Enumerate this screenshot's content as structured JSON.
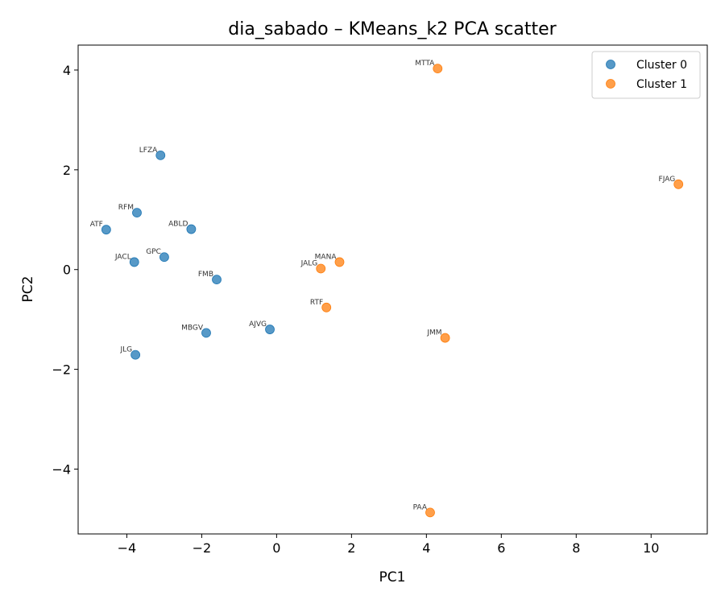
{
  "chart_data": {
    "type": "scatter",
    "title": "dia_sabado – KMeans_k2 PCA scatter",
    "xlabel": "PC1",
    "ylabel": "PC2",
    "xlim": [
      -5.3,
      11.5
    ],
    "ylim": [
      -5.3,
      4.5
    ],
    "xticks": [
      -4,
      -2,
      0,
      2,
      4,
      6,
      8,
      10
    ],
    "yticks": [
      -4,
      -2,
      0,
      2,
      4
    ],
    "grid": false,
    "legend": {
      "position": "top-right"
    },
    "series": [
      {
        "name": "Cluster 0",
        "color": "#1f77b4",
        "points": [
          {
            "label": "LFZA",
            "x": -3.1,
            "y": 2.29
          },
          {
            "label": "RFM",
            "x": -3.73,
            "y": 1.14
          },
          {
            "label": "ATF",
            "x": -4.55,
            "y": 0.8
          },
          {
            "label": "ABLD",
            "x": -2.28,
            "y": 0.81
          },
          {
            "label": "JACL",
            "x": -3.8,
            "y": 0.15
          },
          {
            "label": "GPC",
            "x": -3.0,
            "y": 0.25
          },
          {
            "label": "FMB",
            "x": -1.6,
            "y": -0.2
          },
          {
            "label": "MBGV",
            "x": -1.88,
            "y": -1.27
          },
          {
            "label": "AJVG",
            "x": -0.18,
            "y": -1.2
          },
          {
            "label": "JLG",
            "x": -3.77,
            "y": -1.71
          }
        ]
      },
      {
        "name": "Cluster 1",
        "color": "#ff7f0e",
        "points": [
          {
            "label": "MTTA",
            "x": 4.3,
            "y": 4.03
          },
          {
            "label": "FJAG",
            "x": 10.73,
            "y": 1.71
          },
          {
            "label": "MANA",
            "x": 1.68,
            "y": 0.15
          },
          {
            "label": "JALG",
            "x": 1.18,
            "y": 0.02
          },
          {
            "label": "RTF",
            "x": 1.33,
            "y": -0.76
          },
          {
            "label": "JMM",
            "x": 4.5,
            "y": -1.37
          },
          {
            "label": "PAA",
            "x": 4.1,
            "y": -4.87
          }
        ]
      }
    ]
  }
}
